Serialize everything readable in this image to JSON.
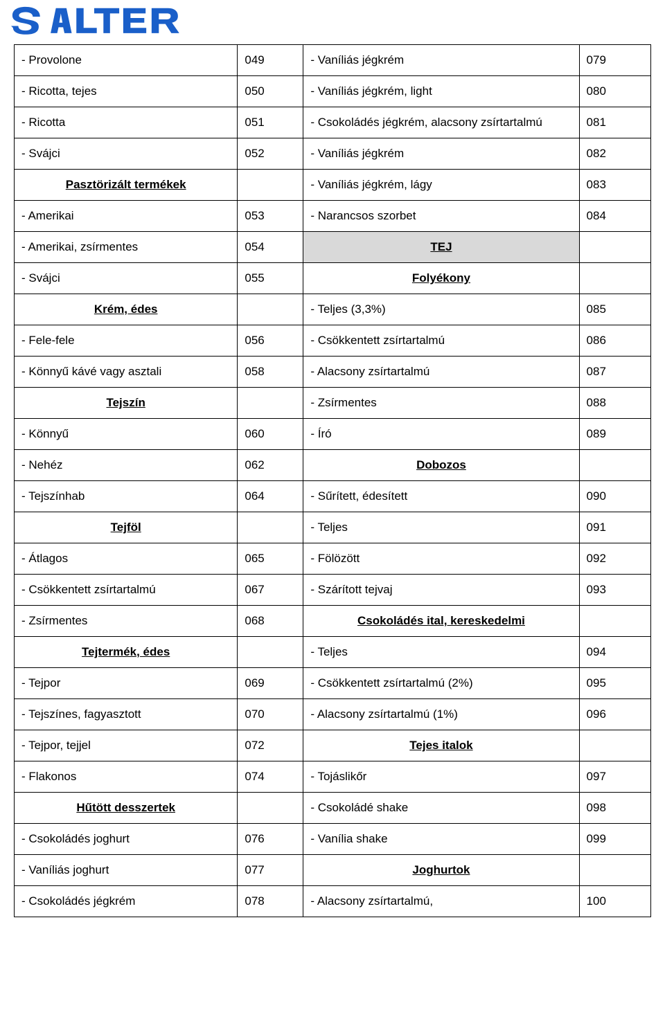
{
  "logo": {
    "text": "SALTER",
    "color": "#1a5fc9"
  },
  "table": {
    "border_color": "#000000",
    "font_family": "Verdana",
    "cell_font_size": 17,
    "section_bg": "#d9d9d9",
    "columns": {
      "col1_width_pct": 36,
      "col2_width_pct": 9,
      "col3_width_pct": 45,
      "col4_width_pct": 10
    }
  },
  "rows": [
    {
      "l": "- Provolone",
      "lc": "049",
      "r": "- Vaníliás jégkrém",
      "rc": "079"
    },
    {
      "l": "- Ricotta, tejes",
      "lc": "050",
      "r": "- Vaníliás jégkrém, light",
      "rc": "080"
    },
    {
      "l": "- Ricotta",
      "lc": "051",
      "r": "- Csokoládés jégkrém, alacsony zsírtartalmú",
      "rc": "081"
    },
    {
      "l": "- Svájci",
      "lc": "052",
      "r": "- Vaníliás jégkrém",
      "rc": "082"
    },
    {
      "l_heading": "Pasztörizált termékek",
      "lc": "",
      "r": "- Vaníliás jégkrém, lágy",
      "rc": "083"
    },
    {
      "l": "- Amerikai",
      "lc": "053",
      "r": "- Narancsos szorbet",
      "rc": "084"
    },
    {
      "l": "- Amerikai, zsírmentes",
      "lc": "054",
      "r_section": "TEJ",
      "rc": ""
    },
    {
      "l": "- Svájci",
      "lc": "055",
      "r_heading": "Folyékony",
      "rc": ""
    },
    {
      "l_heading": "Krém, édes",
      "lc": "",
      "r": "- Teljes (3,3%)",
      "rc": "085"
    },
    {
      "l": "- Fele-fele",
      "lc": "056",
      "r": "- Csökkentett zsírtartalmú",
      "rc": "086"
    },
    {
      "l": "- Könnyű kávé vagy asztali",
      "lc": "058",
      "r": "- Alacsony zsírtartalmú",
      "rc": "087"
    },
    {
      "l_heading": "Tejszín",
      "lc": "",
      "r": "- Zsírmentes",
      "rc": "088"
    },
    {
      "l": "- Könnyű",
      "lc": "060",
      "r": "- Író",
      "rc": "089"
    },
    {
      "l": "- Nehéz",
      "lc": "062",
      "r_heading": "Dobozos",
      "rc": ""
    },
    {
      "l": "- Tejszínhab",
      "lc": "064",
      "r": "- Sűrített, édesített",
      "rc": "090"
    },
    {
      "l_heading": "Tejföl",
      "lc": "",
      "r": "- Teljes",
      "rc": "091"
    },
    {
      "l": "- Átlagos",
      "lc": "065",
      "r": "- Fölözött",
      "rc": "092"
    },
    {
      "l": "- Csökkentett zsírtartalmú",
      "lc": "067",
      "r": "- Szárított tejvaj",
      "rc": "093"
    },
    {
      "l": "- Zsírmentes",
      "lc": "068",
      "r_heading": "Csokoládés ital, kereskedelmi",
      "rc": ""
    },
    {
      "l_heading": "Tejtermék, édes",
      "lc": "",
      "r": "- Teljes",
      "rc": "094"
    },
    {
      "l": "- Tejpor",
      "lc": "069",
      "r": "- Csökkentett zsírtartalmú (2%)",
      "rc": "095"
    },
    {
      "l": "- Tejszínes, fagyasztott",
      "lc": "070",
      "r": "- Alacsony zsírtartalmú (1%)",
      "rc": "096"
    },
    {
      "l": "- Tejpor, tejjel",
      "lc": "072",
      "r_heading": "Tejes italok",
      "rc": ""
    },
    {
      "l": "- Flakonos",
      "lc": "074",
      "r": "- Tojáslikőr",
      "rc": "097"
    },
    {
      "l_heading": "Hűtött desszertek",
      "lc": "",
      "r": "- Csokoládé shake",
      "rc": "098"
    },
    {
      "l": "- Csokoládés joghurt",
      "lc": "076",
      "r": "- Vanília shake",
      "rc": "099"
    },
    {
      "l": "- Vaníliás joghurt",
      "lc": "077",
      "r_heading": "Joghurtok",
      "rc": ""
    },
    {
      "l": "- Csokoládés jégkrém",
      "lc": "078",
      "r": "- Alacsony zsírtartalmú,",
      "rc": "100"
    }
  ]
}
